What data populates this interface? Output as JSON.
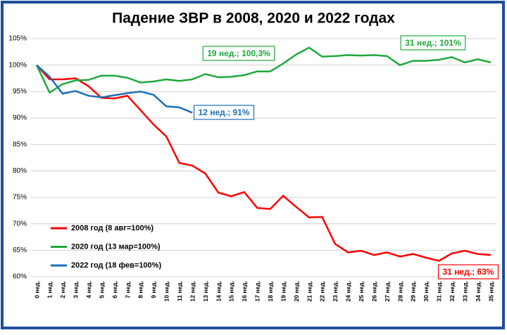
{
  "chart_data": {
    "type": "line",
    "title": "Падение ЗВР в 2008, 2020 и 2022 годах",
    "categories": [
      "0 нед.",
      "1 нед.",
      "2 нед.",
      "3 нед.",
      "4 нед.",
      "5 нед.",
      "6 нед.",
      "7 нед.",
      "8 нед.",
      "9 нед.",
      "10 нед.",
      "11 нед.",
      "12 нед.",
      "13 нед.",
      "14 нед.",
      "15 нед.",
      "16 нед.",
      "17 нед.",
      "18 нед.",
      "19 нед.",
      "20 нед.",
      "21 нед.",
      "22 нед.",
      "23 нед.",
      "24 нед.",
      "25 нед.",
      "26 нед.",
      "27 нед.",
      "28 нед.",
      "29 нед.",
      "30 нед.",
      "31 нед.",
      "32 нед.",
      "33 нед.",
      "34 нед.",
      "35 нед."
    ],
    "series": [
      {
        "name": "2008 год (8 авг=100%)",
        "color": "#ff0000",
        "values": [
          100,
          97.3,
          97.3,
          97.5,
          96,
          93.8,
          93.7,
          94.2,
          91.5,
          88.8,
          86.5,
          81.5,
          81,
          79.5,
          75.9,
          75.2,
          76,
          73,
          72.8,
          75.3,
          73.2,
          71.2,
          71.3,
          66.2,
          64.6,
          64.9,
          64.1,
          64.6,
          63.8,
          64.3,
          63.6,
          63,
          64.4,
          64.9,
          64.3,
          64.1
        ]
      },
      {
        "name": "2020 год (13 мар=100%)",
        "color": "#1fa83c",
        "values": [
          100,
          94.8,
          96.4,
          97.1,
          97.2,
          98,
          98,
          97.6,
          96.7,
          96.9,
          97.3,
          97,
          97.3,
          98.3,
          97.7,
          97.8,
          98.1,
          98.8,
          98.8,
          100.3,
          102,
          103.3,
          101.6,
          101.7,
          101.9,
          101.8,
          101.9,
          101.7,
          100,
          100.8,
          100.8,
          101,
          101.5,
          100.5,
          101.1,
          100.5
        ]
      },
      {
        "name": "2022 год (18 фев=100%)",
        "color": "#1e6fb8",
        "values": [
          100,
          97.8,
          94.6,
          95.1,
          94.2,
          93.9,
          94.3,
          94.7,
          95,
          94.4,
          92.2,
          92,
          91,
          null,
          null,
          null,
          null,
          null,
          null,
          null,
          null,
          null,
          null,
          null,
          null,
          null,
          null,
          null,
          null,
          null,
          null,
          null,
          null,
          null,
          null,
          null
        ]
      }
    ],
    "ylim": [
      60,
      105
    ],
    "yticks": [
      {
        "value": 60,
        "label": "60%"
      },
      {
        "value": 65,
        "label": "65%"
      },
      {
        "value": 70,
        "label": "70%"
      },
      {
        "value": 75,
        "label": "75%"
      },
      {
        "value": 80,
        "label": "80%"
      },
      {
        "value": 85,
        "label": "85%"
      },
      {
        "value": 90,
        "label": "90%"
      },
      {
        "value": 95,
        "label": "95%"
      },
      {
        "value": 100,
        "label": "100%"
      },
      {
        "value": 105,
        "label": "105%"
      }
    ],
    "grid": true,
    "annotations": [
      {
        "text": "19 нед.; 100,3%",
        "color": "#1fa83c"
      },
      {
        "text": "31 нед.; 101%",
        "color": "#1fa83c"
      },
      {
        "text": "12 нед.; 91%",
        "color": "#1e6fb8"
      },
      {
        "text": "31 нед.; 63%",
        "color": "#ff0000"
      }
    ]
  }
}
